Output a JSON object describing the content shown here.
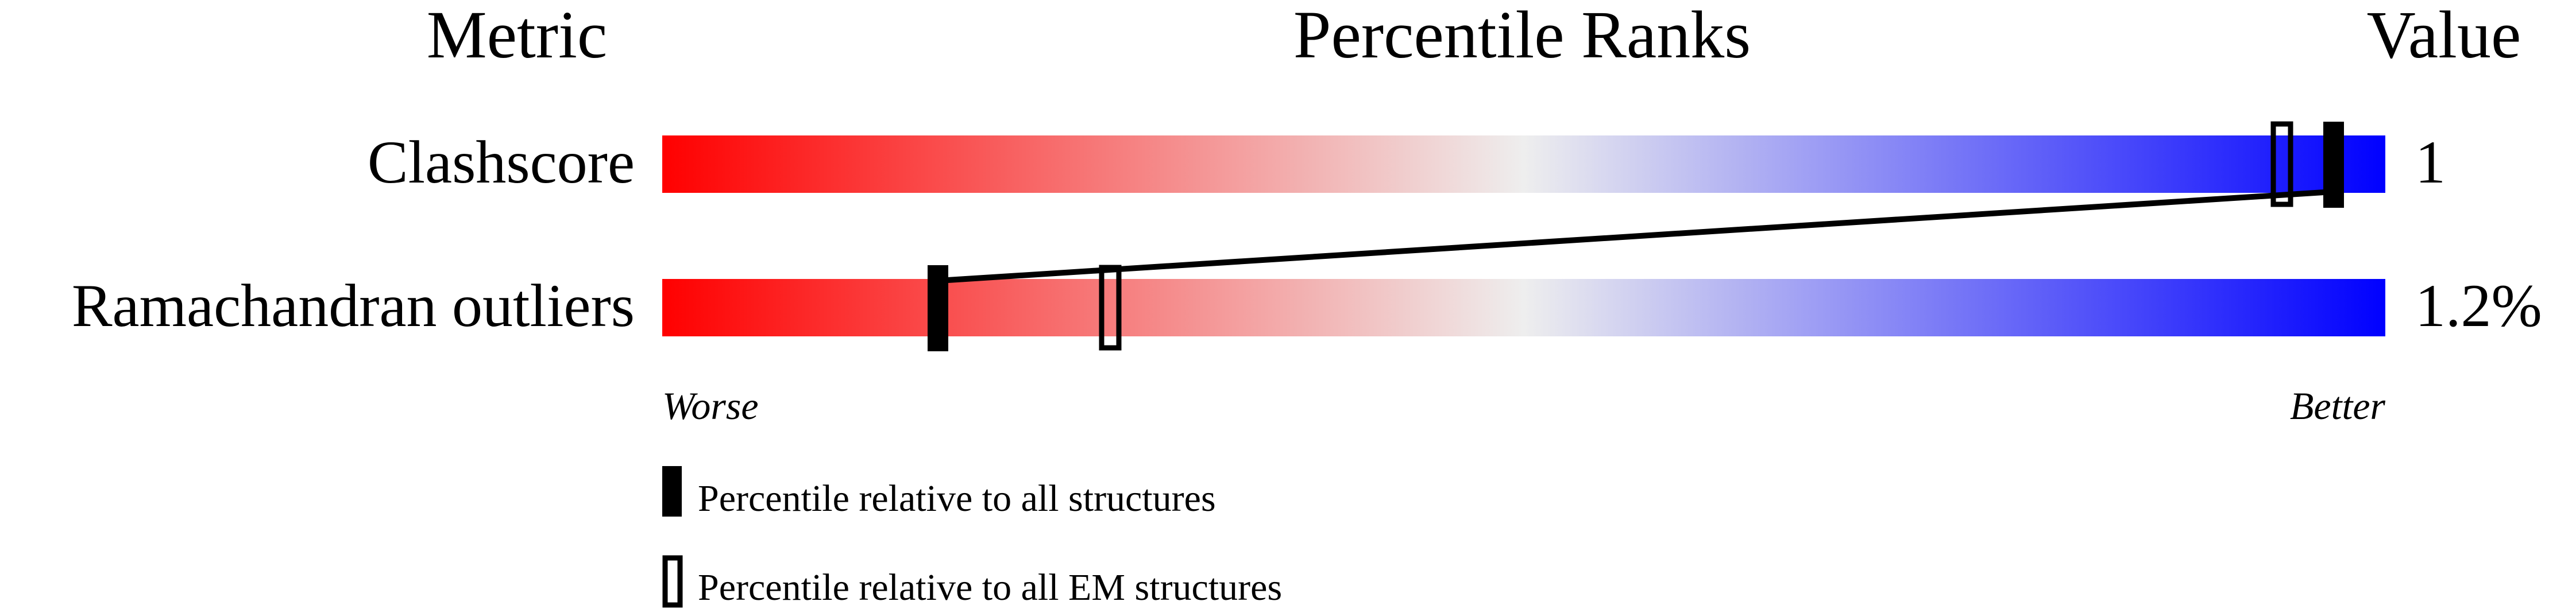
{
  "header": {
    "metric": "Metric",
    "percentile": "Percentile Ranks",
    "value": "Value"
  },
  "chart_data": {
    "type": "bar",
    "title": "Percentile Ranks",
    "xlim": [
      0,
      100
    ],
    "scale_left_label": "Worse",
    "scale_right_label": "Better",
    "gradient_colors": [
      "#ff0000",
      "#eeeeee",
      "#0000ff"
    ],
    "metrics": [
      {
        "name": "Clashscore",
        "value": "1",
        "percentile_all": 97,
        "percentile_em": 94
      },
      {
        "name": "Ramachandran outliers",
        "value": "1.2%",
        "percentile_all": 16,
        "percentile_em": 26
      }
    ],
    "legend": [
      {
        "marker": "filled",
        "label": "Percentile relative to all structures"
      },
      {
        "marker": "open",
        "label": "Percentile relative to all EM structures"
      }
    ]
  }
}
